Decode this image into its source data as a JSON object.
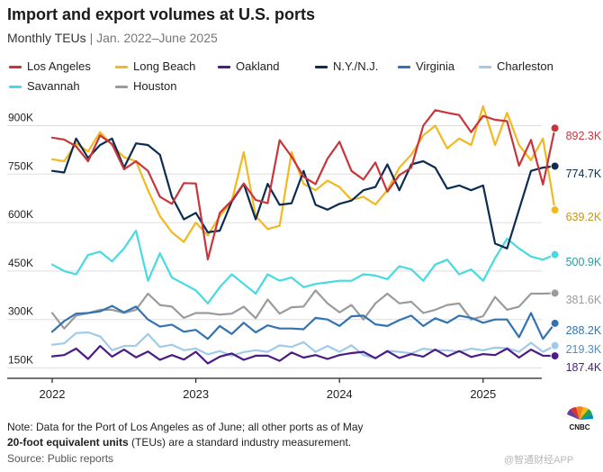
{
  "chart_data": {
    "type": "line",
    "title": "Import and export volumes at U.S. ports",
    "subtitle_main": "Monthly TEUs",
    "subtitle_sep": "|",
    "subtitle_range": "Jan. 2022–June 2025",
    "ylim": [
      130,
      990
    ],
    "y_ticks": [
      150,
      300,
      450,
      600,
      750,
      900
    ],
    "y_tick_labels": [
      "150K",
      "300K",
      "450K",
      "600K",
      "750K",
      "900K"
    ],
    "x_ticks": [
      {
        "month_index": 0,
        "label": "2022"
      },
      {
        "month_index": 12,
        "label": "2023"
      },
      {
        "month_index": 24,
        "label": "2024"
      },
      {
        "month_index": 36,
        "label": "2025"
      }
    ],
    "series": [
      {
        "name": "Los Angeles",
        "color": "#c8353a",
        "end_label": "892.3K",
        "values": [
          863,
          857,
          836,
          790,
          870,
          843,
          765,
          790,
          760,
          680,
          658,
          722,
          721,
          486,
          630,
          668,
          721,
          670,
          660,
          855,
          804,
          742,
          719,
          798,
          850,
          760,
          733,
          786,
          696,
          747,
          770,
          900,
          948,
          940,
          933,
          880,
          930,
          918,
          914,
          776,
          856,
          718,
          892.3
        ]
      },
      {
        "name": "Long Beach",
        "color": "#f2b81d",
        "end_label": "639.2K",
        "values": [
          796,
          790,
          845,
          820,
          880,
          840,
          802,
          790,
          700,
          620,
          570,
          540,
          600,
          560,
          620,
          665,
          818,
          620,
          580,
          590,
          818,
          720,
          700,
          730,
          710,
          670,
          680,
          656,
          700,
          770,
          810,
          870,
          900,
          830,
          860,
          840,
          960,
          840,
          940,
          840,
          793,
          860,
          639.2
        ]
      },
      {
        "name": "Oakland",
        "color": "#4a1c84",
        "end_label": "187.4K",
        "values": [
          186,
          190,
          210,
          178,
          218,
          185,
          207,
          183,
          201,
          175,
          190,
          176,
          200,
          164,
          185,
          195,
          175,
          188,
          188,
          172,
          198,
          182,
          190,
          178,
          190,
          196,
          200,
          180,
          202,
          181,
          193,
          185,
          207,
          186,
          202,
          184,
          193,
          190,
          210,
          182,
          207,
          188,
          187.4
        ]
      },
      {
        "name": "N.Y./N.J.",
        "color": "#0c2c52",
        "end_label": "774.7K",
        "values": [
          760,
          755,
          860,
          800,
          840,
          860,
          770,
          845,
          840,
          810,
          680,
          610,
          630,
          570,
          575,
          665,
          720,
          610,
          720,
          655,
          660,
          760,
          655,
          640,
          658,
          668,
          700,
          710,
          780,
          700,
          780,
          790,
          770,
          705,
          715,
          700,
          715,
          535,
          520,
          640,
          760,
          770,
          774.7
        ]
      },
      {
        "name": "Virginia",
        "color": "#3273b3",
        "end_label": "288.2K",
        "values": [
          262,
          295,
          318,
          320,
          325,
          342,
          322,
          340,
          300,
          278,
          284,
          262,
          268,
          240,
          280,
          255,
          290,
          260,
          282,
          272,
          272,
          270,
          305,
          300,
          280,
          310,
          312,
          285,
          280,
          298,
          312,
          280,
          304,
          290,
          312,
          305,
          290,
          300,
          300,
          245,
          320,
          240,
          288.2
        ]
      },
      {
        "name": "Charleston",
        "color": "#9fcbe8",
        "end_label": "219.3K",
        "values": [
          222,
          226,
          258,
          260,
          248,
          205,
          218,
          219,
          255,
          215,
          222,
          205,
          210,
          192,
          202,
          188,
          199,
          205,
          200,
          220,
          215,
          230,
          200,
          218,
          200,
          220,
          190,
          180,
          203,
          200,
          195,
          210,
          205,
          205,
          200,
          210,
          205,
          213,
          211,
          200,
          228,
          200,
          219.3
        ]
      },
      {
        "name": "Savannah",
        "color": "#46dbe0",
        "end_label": "500.9K",
        "values": [
          470,
          450,
          440,
          500,
          510,
          480,
          520,
          575,
          420,
          505,
          430,
          410,
          390,
          350,
          400,
          440,
          410,
          380,
          440,
          420,
          430,
          400,
          410,
          415,
          420,
          420,
          440,
          436,
          425,
          465,
          455,
          420,
          470,
          485,
          440,
          455,
          420,
          490,
          550,
          520,
          495,
          485,
          500.9
        ]
      },
      {
        "name": "Houston",
        "color": "#9b9b9b",
        "end_label": "381.6K",
        "values": [
          320,
          272,
          312,
          320,
          330,
          330,
          320,
          330,
          380,
          345,
          340,
          305,
          320,
          320,
          315,
          318,
          340,
          304,
          362,
          318,
          338,
          340,
          390,
          350,
          322,
          345,
          300,
          350,
          380,
          350,
          355,
          320,
          330,
          345,
          350,
          300,
          310,
          370,
          330,
          340,
          380,
          380,
          381.6
        ]
      }
    ],
    "legend": [
      "Los Angeles",
      "Long Beach",
      "Oakland",
      "N.Y./N.J.",
      "Virginia",
      "Charleston",
      "Savannah",
      "Houston"
    ]
  },
  "footer": {
    "note": "Note: Data for the Port of Los Angeles as of June; all other ports as of May",
    "teu_bold": "20-foot equivalent units",
    "teu_rest": " (TEUs) are a standard industry measurement.",
    "source": "Source: Public reports"
  },
  "branding": {
    "logo_text": "CNBC",
    "watermark": "@智通财经APP"
  }
}
